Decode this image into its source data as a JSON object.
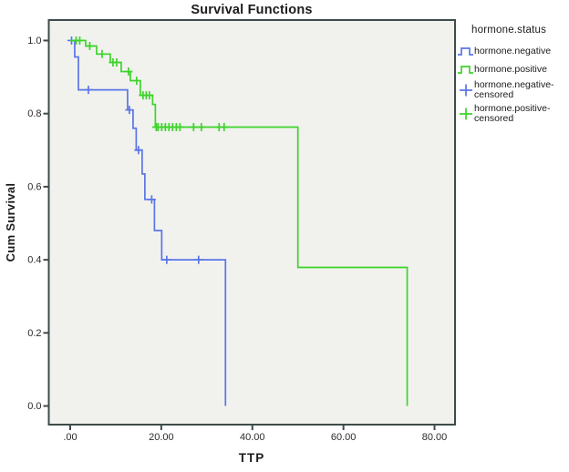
{
  "chart_data": {
    "type": "line",
    "subtype": "kaplan-meier-step-survival",
    "title": "Survival Functions",
    "xlabel": "TTP",
    "ylabel": "Cum Survival",
    "grid": false,
    "plot_bg": "#F1F2EE",
    "frame_color": "#3E4B4B",
    "tick_label_color": "#2b2b2b",
    "xlim": [
      -4.7,
      84.5
    ],
    "ylim": [
      -0.051,
      1.056
    ],
    "x_ticks": [
      {
        "value": 0,
        "label": ".00"
      },
      {
        "value": 20,
        "label": "20.00"
      },
      {
        "value": 40,
        "label": "40.00"
      },
      {
        "value": 60,
        "label": "60.00"
      },
      {
        "value": 80,
        "label": "80.00"
      }
    ],
    "y_ticks": [
      {
        "value": 0.0,
        "label": "0.0"
      },
      {
        "value": 0.2,
        "label": "0.2"
      },
      {
        "value": 0.4,
        "label": "0.4"
      },
      {
        "value": 0.6,
        "label": "0.6"
      },
      {
        "value": 0.8,
        "label": "0.8"
      },
      {
        "value": 1.0,
        "label": "1.0"
      }
    ],
    "legend": {
      "title": "hormone.status",
      "position": "right",
      "items": [
        {
          "label": "hormone.negative",
          "marker": "step-line",
          "color": "#5A75E8"
        },
        {
          "label": "hormone.positive",
          "marker": "step-line",
          "color": "#3DD32A"
        },
        {
          "label": "hormone.negative-censored",
          "marker": "plus",
          "color": "#5A75E8"
        },
        {
          "label": "hormone.positive-censored",
          "marker": "plus",
          "color": "#3DD32A"
        }
      ]
    },
    "series": [
      {
        "name": "hormone.negative",
        "color": "#5A75E8",
        "steps": [
          [
            0,
            1.0
          ],
          [
            1.0,
            0.955
          ],
          [
            1.8,
            0.865
          ],
          [
            12.6,
            0.81
          ],
          [
            13.8,
            0.76
          ],
          [
            14.5,
            0.7
          ],
          [
            15.8,
            0.635
          ],
          [
            16.4,
            0.565
          ],
          [
            18.5,
            0.48
          ],
          [
            20.1,
            0.4
          ],
          [
            34.1,
            0.0
          ]
        ],
        "censored": [
          [
            0.3,
            1.0
          ],
          [
            4.0,
            0.865
          ],
          [
            13.0,
            0.81
          ],
          [
            15.0,
            0.7
          ],
          [
            17.9,
            0.565
          ],
          [
            21.2,
            0.4
          ],
          [
            28.2,
            0.4
          ]
        ]
      },
      {
        "name": "hormone.positive",
        "color": "#3DD32A",
        "steps": [
          [
            0,
            1.0
          ],
          [
            3.4,
            0.985
          ],
          [
            5.8,
            0.963
          ],
          [
            8.8,
            0.94
          ],
          [
            11.2,
            0.915
          ],
          [
            13.2,
            0.89
          ],
          [
            15.4,
            0.85
          ],
          [
            18.1,
            0.825
          ],
          [
            18.7,
            0.763
          ],
          [
            50.0,
            0.379
          ],
          [
            74.0,
            0.0
          ]
        ],
        "censored": [
          [
            1.3,
            1.0
          ],
          [
            2.1,
            1.0
          ],
          [
            4.3,
            0.985
          ],
          [
            7.0,
            0.963
          ],
          [
            9.4,
            0.94
          ],
          [
            10.2,
            0.94
          ],
          [
            12.8,
            0.915
          ],
          [
            14.6,
            0.89
          ],
          [
            16.0,
            0.85
          ],
          [
            16.7,
            0.85
          ],
          [
            17.4,
            0.85
          ],
          [
            18.9,
            0.763
          ],
          [
            19.3,
            0.763
          ],
          [
            20.1,
            0.763
          ],
          [
            20.9,
            0.763
          ],
          [
            21.7,
            0.763
          ],
          [
            22.5,
            0.763
          ],
          [
            23.3,
            0.763
          ],
          [
            24.1,
            0.763
          ],
          [
            27.1,
            0.763
          ],
          [
            28.8,
            0.763
          ],
          [
            32.7,
            0.763
          ],
          [
            33.8,
            0.763
          ]
        ]
      }
    ]
  }
}
